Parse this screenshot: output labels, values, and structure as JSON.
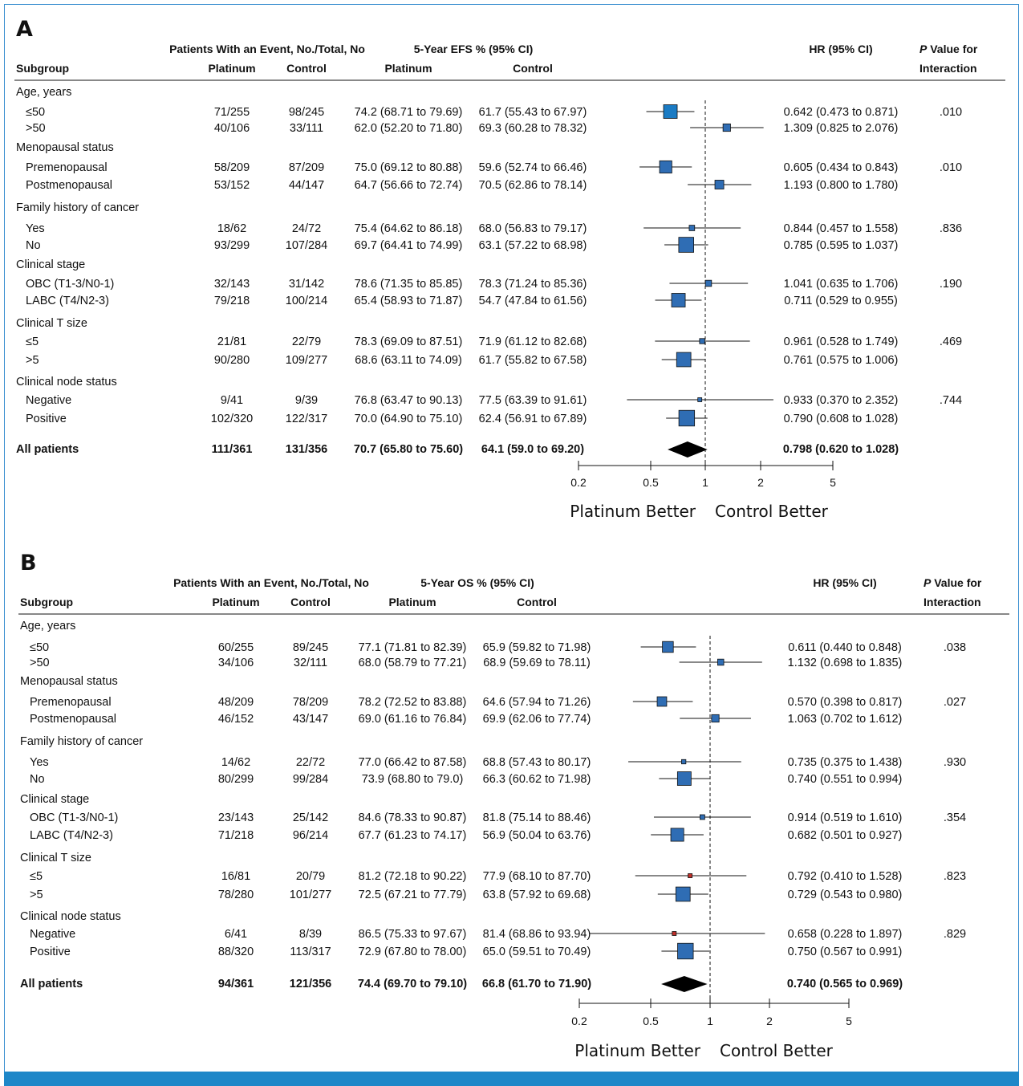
{
  "chart_data": [
    {
      "type": "forest",
      "panel_label": "A",
      "headers": {
        "events_group": "Patients With an Event, No./Total, No",
        "pct_group": "5-Year EFS % (95% CI)",
        "subgroup": "Subgroup",
        "platinum": "Platinum",
        "control": "Control",
        "hr": "HR (95% CI)",
        "p_line1": "P",
        "p_line1_rest": " Value for",
        "p_line2": "Interaction"
      },
      "groups": [
        {
          "name": "Age, years",
          "p": ".010",
          "rows": [
            {
              "label": "≤50",
              "platinum_events": "71/255",
              "control_events": "98/245",
              "platinum_pct": "74.2 (68.71 to 79.69)",
              "control_pct": "61.7 (55.43 to 67.97)",
              "hr_text": "0.642 (0.473 to 0.871)",
              "hr": 0.642,
              "lo": 0.473,
              "hi": 0.871,
              "weight": 1.0,
              "color": "#1a7bc4"
            },
            {
              "label": ">50",
              "platinum_events": "40/106",
              "control_events": "33/111",
              "platinum_pct": "62.0 (52.20 to 71.80)",
              "control_pct": "69.3 (60.28 to 78.32)",
              "hr_text": "1.309 (0.825 to 2.076)",
              "hr": 1.309,
              "lo": 0.825,
              "hi": 2.076,
              "weight": 0.55,
              "color": "#2f6db4"
            }
          ]
        },
        {
          "name": "Menopausal status",
          "p": ".010",
          "rows": [
            {
              "label": "Premenopausal",
              "platinum_events": "58/209",
              "control_events": "87/209",
              "platinum_pct": "75.0 (69.12 to 80.88)",
              "control_pct": "59.6 (52.74 to 66.46)",
              "hr_text": "0.605 (0.434 to 0.843)",
              "hr": 0.605,
              "lo": 0.434,
              "hi": 0.843,
              "weight": 0.9,
              "color": "#2f6db4"
            },
            {
              "label": "Postmenopausal",
              "platinum_events": "53/152",
              "control_events": "44/147",
              "platinum_pct": "64.7 (56.66 to 72.74)",
              "control_pct": "70.5 (62.86 to 78.14)",
              "hr_text": "1.193 (0.800 to 1.780)",
              "hr": 1.193,
              "lo": 0.8,
              "hi": 1.78,
              "weight": 0.65,
              "color": "#2f6db4"
            }
          ]
        },
        {
          "name": "Family history of cancer",
          "p": ".836",
          "rows": [
            {
              "label": "Yes",
              "platinum_events": "18/62",
              "control_events": "24/72",
              "platinum_pct": "75.4 (64.62 to 86.18)",
              "control_pct": "68.0 (56.83 to 79.17)",
              "hr_text": "0.844 (0.457 to 1.558)",
              "hr": 0.844,
              "lo": 0.457,
              "hi": 1.558,
              "weight": 0.4,
              "color": "#2f6db4"
            },
            {
              "label": "No",
              "platinum_events": "93/299",
              "control_events": "107/284",
              "platinum_pct": "69.7 (64.41 to 74.99)",
              "control_pct": "63.1 (57.22 to 68.98)",
              "hr_text": "0.785 (0.595 to 1.037)",
              "hr": 0.785,
              "lo": 0.595,
              "hi": 1.037,
              "weight": 1.1,
              "color": "#2f6db4"
            }
          ]
        },
        {
          "name": "Clinical stage",
          "p": ".190",
          "rows": [
            {
              "label": "OBC (T1-3/N0-1)",
              "platinum_events": "32/143",
              "control_events": "31/142",
              "platinum_pct": "78.6 (71.35 to 85.85)",
              "control_pct": "78.3 (71.24 to 85.36)",
              "hr_text": "1.041 (0.635 to 1.706)",
              "hr": 1.041,
              "lo": 0.635,
              "hi": 1.706,
              "weight": 0.45,
              "color": "#2f6db4"
            },
            {
              "label": "LABC (T4/N2-3)",
              "platinum_events": "79/218",
              "control_events": "100/214",
              "platinum_pct": "65.4 (58.93 to 71.87)",
              "control_pct": "54.7 (47.84 to 61.56)",
              "hr_text": "0.711 (0.529 to 0.955)",
              "hr": 0.711,
              "lo": 0.529,
              "hi": 0.955,
              "weight": 1.0,
              "color": "#2f6db4"
            }
          ]
        },
        {
          "name": "Clinical T size",
          "p": ".469",
          "rows": [
            {
              "label": "≤5",
              "platinum_events": "21/81",
              "control_events": "22/79",
              "platinum_pct": "78.3 (69.09 to 87.51)",
              "control_pct": "71.9 (61.12 to 82.68)",
              "hr_text": "0.961 (0.528 to 1.749)",
              "hr": 0.961,
              "lo": 0.528,
              "hi": 1.749,
              "weight": 0.38,
              "color": "#2f6db4"
            },
            {
              "label": ">5",
              "platinum_events": "90/280",
              "control_events": "109/277",
              "platinum_pct": "68.6 (63.11 to 74.09)",
              "control_pct": "61.7 (55.82 to 67.58)",
              "hr_text": "0.761 (0.575 to 1.006)",
              "hr": 0.761,
              "lo": 0.575,
              "hi": 1.006,
              "weight": 1.05,
              "color": "#2f6db4"
            }
          ]
        },
        {
          "name": "Clinical node status",
          "p": ".744",
          "rows": [
            {
              "label": "Negative",
              "platinum_events": "9/41",
              "control_events": "9/39",
              "platinum_pct": "76.8 (63.47 to 90.13)",
              "control_pct": "77.5 (63.39 to 91.61)",
              "hr_text": "0.933 (0.370 to 2.352)",
              "hr": 0.933,
              "lo": 0.37,
              "hi": 2.352,
              "weight": 0.25,
              "color": "#2f6db4"
            },
            {
              "label": "Positive",
              "platinum_events": "102/320",
              "control_events": "122/317",
              "platinum_pct": "70.0 (64.90 to 75.10)",
              "control_pct": "62.4 (56.91 to 67.89)",
              "hr_text": "0.790 (0.608 to 1.028)",
              "hr": 0.79,
              "lo": 0.608,
              "hi": 1.028,
              "weight": 1.15,
              "color": "#2f6db4"
            }
          ]
        }
      ],
      "overall": {
        "label": "All patients",
        "platinum_events": "111/361",
        "control_events": "131/356",
        "platinum_pct": "70.7 (65.80 to 75.60)",
        "control_pct": "64.1 (59.0 to 69.20)",
        "hr_text": "0.798 (0.620 to 1.028)",
        "hr": 0.798,
        "lo": 0.62,
        "hi": 1.028
      },
      "axis": {
        "scale": "log",
        "ticks": [
          0.2,
          0.5,
          1,
          2,
          5
        ],
        "tick_labels": [
          "0.2",
          "0.5",
          "1",
          "2",
          "5"
        ],
        "range": [
          0.2,
          5
        ],
        "reference": 1
      },
      "favors_left": "Platinum Better",
      "favors_right": "Control Better"
    },
    {
      "type": "forest",
      "panel_label": "B",
      "headers": {
        "events_group": "Patients With an Event, No./Total, No",
        "pct_group": "5-Year OS % (95% CI)",
        "subgroup": "Subgroup",
        "platinum": "Platinum",
        "control": "Control",
        "hr": "HR (95% CI)",
        "p_line1": "P",
        "p_line1_rest": " Value for",
        "p_line2": "Interaction"
      },
      "groups": [
        {
          "name": "Age, years",
          "p": ".038",
          "rows": [
            {
              "label": "≤50",
              "platinum_events": "60/255",
              "control_events": "89/245",
              "platinum_pct": "77.1 (71.81 to 82.39)",
              "control_pct": "65.9 (59.82 to 71.98)",
              "hr_text": "0.611 (0.440 to 0.848)",
              "hr": 0.611,
              "lo": 0.44,
              "hi": 0.848,
              "weight": 0.8,
              "color": "#2f6db4"
            },
            {
              "label": ">50",
              "platinum_events": "34/106",
              "control_events": "32/111",
              "platinum_pct": "68.0 (58.79 to 77.21)",
              "control_pct": "68.9 (59.69 to 78.11)",
              "hr_text": "1.132 (0.698 to 1.835)",
              "hr": 1.132,
              "lo": 0.698,
              "hi": 1.835,
              "weight": 0.45,
              "color": "#2f6db4"
            }
          ]
        },
        {
          "name": "Menopausal status",
          "p": ".027",
          "rows": [
            {
              "label": "Premenopausal",
              "platinum_events": "48/209",
              "control_events": "78/209",
              "platinum_pct": "78.2 (72.52 to 83.88)",
              "control_pct": "64.6 (57.94 to 71.26)",
              "hr_text": "0.570 (0.398 to 0.817)",
              "hr": 0.57,
              "lo": 0.398,
              "hi": 0.817,
              "weight": 0.7,
              "color": "#2f6db4"
            },
            {
              "label": "Postmenopausal",
              "platinum_events": "46/152",
              "control_events": "43/147",
              "platinum_pct": "69.0 (61.16 to 76.84)",
              "control_pct": "69.9 (62.06 to 77.74)",
              "hr_text": "1.063 (0.702 to 1.612)",
              "hr": 1.063,
              "lo": 0.702,
              "hi": 1.612,
              "weight": 0.55,
              "color": "#2f6db4"
            }
          ]
        },
        {
          "name": "Family history of cancer",
          "p": ".930",
          "rows": [
            {
              "label": "Yes",
              "platinum_events": "14/62",
              "control_events": "22/72",
              "platinum_pct": "77.0 (66.42 to 87.58)",
              "control_pct": "68.8 (57.43 to 80.17)",
              "hr_text": "0.735 (0.375 to 1.438)",
              "hr": 0.735,
              "lo": 0.375,
              "hi": 1.438,
              "weight": 0.32,
              "color": "#2f6db4"
            },
            {
              "label": "No",
              "platinum_events": "80/299",
              "control_events": "99/284",
              "platinum_pct": "73.9 (68.80 to 79.0)",
              "control_pct": "66.3 (60.62 to 71.98)",
              "hr_text": "0.740 (0.551 to 0.994)",
              "hr": 0.74,
              "lo": 0.551,
              "hi": 0.994,
              "weight": 1.0,
              "color": "#2f6db4"
            }
          ]
        },
        {
          "name": "Clinical stage",
          "p": ".354",
          "rows": [
            {
              "label": "OBC (T1-3/N0-1)",
              "platinum_events": "23/143",
              "control_events": "25/142",
              "platinum_pct": "84.6 (78.33 to 90.87)",
              "control_pct": "81.8 (75.14 to 88.46)",
              "hr_text": "0.914 (0.519 to 1.610)",
              "hr": 0.914,
              "lo": 0.519,
              "hi": 1.61,
              "weight": 0.35,
              "color": "#2f6db4"
            },
            {
              "label": "LABC (T4/N2-3)",
              "platinum_events": "71/218",
              "control_events": "96/214",
              "platinum_pct": "67.7 (61.23 to 74.17)",
              "control_pct": "56.9 (50.04 to 63.76)",
              "hr_text": "0.682 (0.501 to 0.927)",
              "hr": 0.682,
              "lo": 0.501,
              "hi": 0.927,
              "weight": 0.95,
              "color": "#2f6db4"
            }
          ]
        },
        {
          "name": "Clinical T size",
          "p": ".823",
          "rows": [
            {
              "label": "≤5",
              "platinum_events": "16/81",
              "control_events": "20/79",
              "platinum_pct": "81.2 (72.18 to 90.22)",
              "control_pct": "77.9 (68.10 to 87.70)",
              "hr_text": "0.792 (0.410 to 1.528)",
              "hr": 0.792,
              "lo": 0.41,
              "hi": 1.528,
              "weight": 0.3,
              "color": "#c0302a"
            },
            {
              "label": ">5",
              "platinum_events": "78/280",
              "control_events": "101/277",
              "platinum_pct": "72.5 (67.21 to 77.79)",
              "control_pct": "63.8 (57.92 to 69.68)",
              "hr_text": "0.729 (0.543 to 0.980)",
              "hr": 0.729,
              "lo": 0.543,
              "hi": 0.98,
              "weight": 1.05,
              "color": "#2f6db4"
            }
          ]
        },
        {
          "name": "Clinical node status",
          "p": ".829",
          "rows": [
            {
              "label": "Negative",
              "platinum_events": "6/41",
              "control_events": "8/39",
              "platinum_pct": "86.5 (75.33 to 97.67)",
              "control_pct": "81.4 (68.86 to 93.94)",
              "hr_text": "0.658 (0.228 to 1.897)",
              "hr": 0.658,
              "lo": 0.228,
              "hi": 1.897,
              "weight": 0.2,
              "color": "#c0302a"
            },
            {
              "label": "Positive",
              "platinum_events": "88/320",
              "control_events": "113/317",
              "platinum_pct": "72.9 (67.80 to 78.00)",
              "control_pct": "65.0 (59.51 to 70.49)",
              "hr_text": "0.750 (0.567 to 0.991)",
              "hr": 0.75,
              "lo": 0.567,
              "hi": 0.991,
              "weight": 1.15,
              "color": "#2f6db4"
            }
          ]
        }
      ],
      "overall": {
        "label": "All patients",
        "platinum_events": "94/361",
        "control_events": "121/356",
        "platinum_pct": "74.4 (69.70 to 79.10)",
        "control_pct": "66.8 (61.70 to 71.90)",
        "hr_text": "0.740 (0.565 to 0.969)",
        "hr": 0.74,
        "lo": 0.565,
        "hi": 0.969
      },
      "axis": {
        "scale": "log",
        "ticks": [
          0.2,
          0.5,
          1,
          2,
          5
        ],
        "tick_labels": [
          "0.2",
          "0.5",
          "1",
          "2",
          "5"
        ],
        "range": [
          0.2,
          5
        ],
        "reference": 1
      },
      "favors_left": "Platinum Better",
      "favors_right": "Control Better"
    }
  ],
  "colors": {
    "marker": "#2f6db4",
    "marker_highlight": "#1a7bc4",
    "marker_small_red": "#c0302a",
    "bottom_bar": "#1e87c8",
    "frame": "#3a8fd0",
    "text": "#111111"
  }
}
